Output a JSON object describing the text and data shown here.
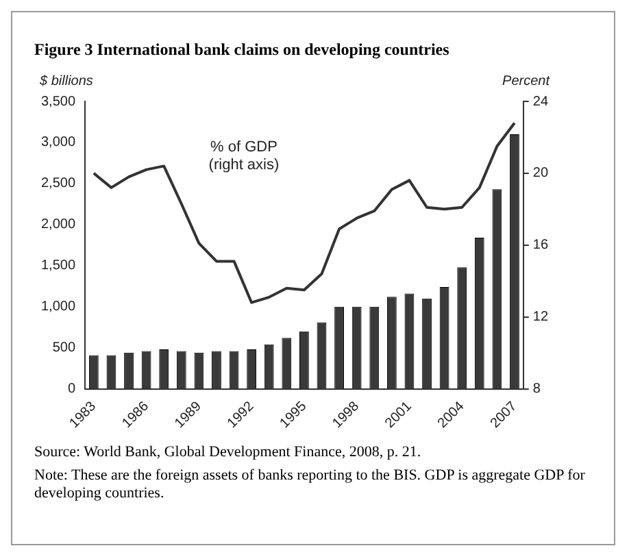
{
  "chart_data": {
    "type": "bar",
    "title": "Figure 3 International bank claims on developing countries",
    "categories": [
      "1983",
      null,
      null,
      "1986",
      null,
      null,
      "1989",
      null,
      null,
      "1992",
      null,
      null,
      "1995",
      null,
      null,
      "1998",
      null,
      null,
      "2001",
      null,
      null,
      "2004",
      null,
      null,
      "2007"
    ],
    "series": [
      {
        "color": "#3a3a3a",
        "values": [
          410,
          410,
          440,
          460,
          480,
          460,
          440,
          460,
          460,
          480,
          540,
          620,
          700,
          810,
          1000,
          1000,
          1000,
          1120,
          1160,
          1100,
          1240,
          1480,
          1840,
          2430,
          3100
        ]
      },
      {
        "type": "line",
        "name": "% of GDP (right axis)",
        "axis": "y2",
        "color": "#333333",
        "values": [
          20.0,
          19.2,
          19.8,
          20.2,
          20.4,
          18.3,
          16.1,
          15.1,
          15.1,
          12.8,
          13.1,
          13.6,
          13.5,
          14.4,
          16.9,
          17.5,
          17.9,
          19.1,
          19.6,
          18.1,
          18.0,
          18.1,
          19.2,
          21.5,
          22.8
        ]
      }
    ],
    "ylabel": "$ billions",
    "y2label": "Percent",
    "ylim": [
      0,
      3500
    ],
    "yticks": [
      {
        "value": 0,
        "label": "0"
      },
      {
        "value": 500,
        "label": "500"
      },
      {
        "value": 1000,
        "label": "1,000"
      },
      {
        "value": 1500,
        "label": "1,500"
      },
      {
        "value": 2000,
        "label": "2,000"
      },
      {
        "value": 2500,
        "label": "2,500"
      },
      {
        "value": 3000,
        "label": "3,000"
      },
      {
        "value": 3500,
        "label": "3,500"
      }
    ],
    "y2lim": [
      8,
      24
    ],
    "y2ticks": [
      8,
      12,
      16,
      20,
      24
    ],
    "grid": false,
    "legend": false,
    "marker": "none",
    "line_style": "solid",
    "annotations": [
      "Source: World Bank, Global Development Finance, 2008, p. 21.",
      "Note: These are the foreign assets of banks reporting to the BIS. GDP is aggregate GDP for developing countries."
    ]
  }
}
